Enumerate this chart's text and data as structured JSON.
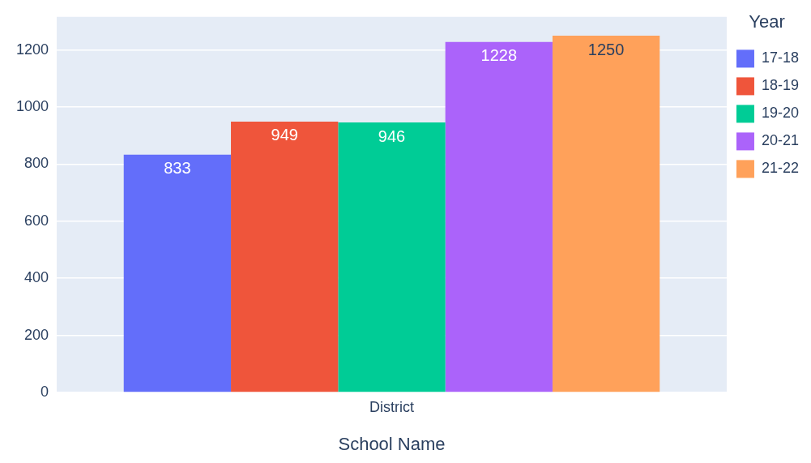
{
  "chart_data": {
    "type": "bar",
    "categories": [
      "District"
    ],
    "xlabel": "School Name",
    "legend_title": "Year",
    "series": [
      {
        "name": "17-18",
        "color": "#636efa",
        "values": [
          833
        ]
      },
      {
        "name": "18-19",
        "color": "#ef553b",
        "values": [
          949
        ]
      },
      {
        "name": "19-20",
        "color": "#00cc96",
        "values": [
          946
        ]
      },
      {
        "name": "20-21",
        "color": "#ab63fa",
        "values": [
          1228
        ]
      },
      {
        "name": "21-22",
        "color": "#ffa15a",
        "values": [
          1250
        ]
      }
    ],
    "ylim": [
      0,
      1316
    ],
    "yticks": [
      0,
      200,
      400,
      600,
      800,
      1000,
      1200
    ],
    "grid": "y",
    "legend": "right",
    "data_labels": true
  }
}
